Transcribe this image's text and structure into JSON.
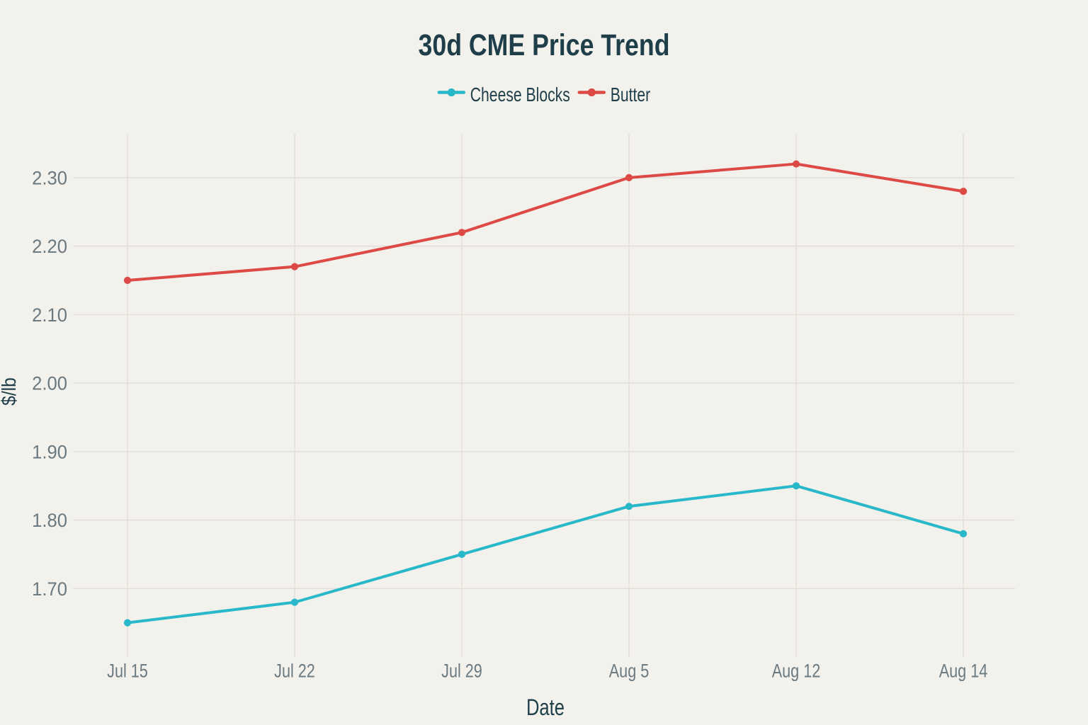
{
  "title": "30d CME Price Trend",
  "chart_data": {
    "type": "line",
    "categories": [
      "Jul 15",
      "Jul 22",
      "Jul 29",
      "Aug 5",
      "Aug 12",
      "Aug 14"
    ],
    "series": [
      {
        "name": "Cheese Blocks",
        "color": "#29b8c9",
        "values": [
          1.65,
          1.68,
          1.75,
          1.82,
          1.85,
          1.78
        ]
      },
      {
        "name": "Butter",
        "color": "#dd4a45",
        "values": [
          2.15,
          2.17,
          2.22,
          2.3,
          2.32,
          2.28
        ]
      }
    ],
    "xlabel": "Date",
    "ylabel": "$/lb",
    "yticks": [
      "1.70",
      "1.80",
      "1.90",
      "2.00",
      "2.10",
      "2.20",
      "2.30"
    ],
    "ylim": [
      1.6,
      2.364
    ],
    "grid": true,
    "legend_position": "top-center"
  },
  "colors": {
    "background": "#f2f1ec",
    "grid": "#e0ded7",
    "tick_text": "#6b7980",
    "heading_text": "#1e3e49"
  }
}
